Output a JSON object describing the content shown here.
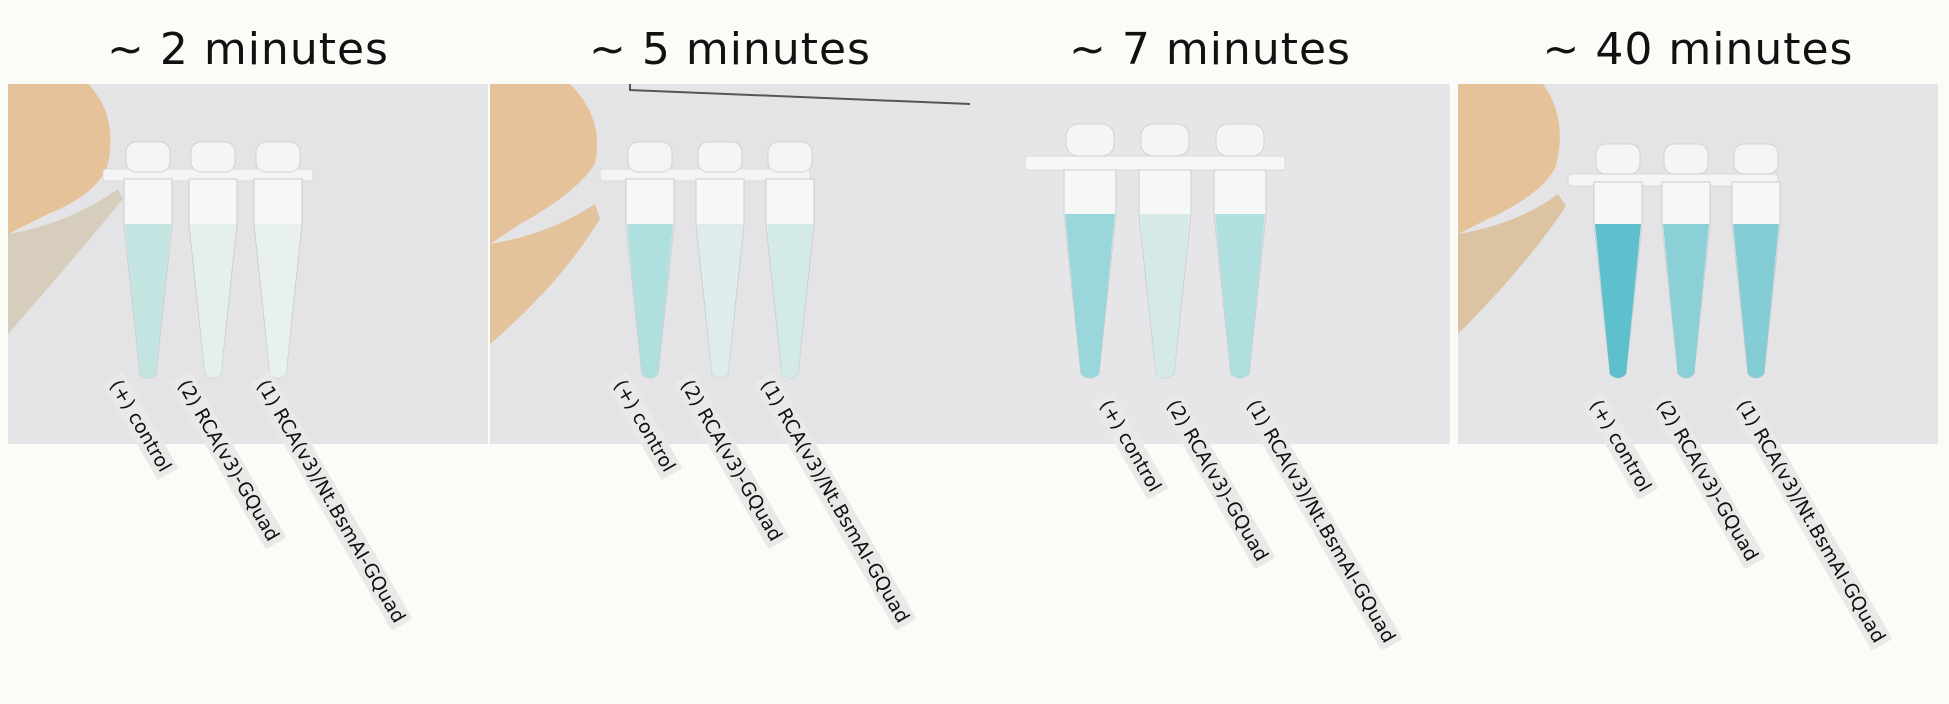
{
  "panels": [
    {
      "title": "~ 2 minutes",
      "labels": [
        "(+) control",
        "(2) RCA(v3)-GQuad",
        "(1) RCA(v3)/Nt.BsmAI-GQuad"
      ],
      "tube_colors": [
        "#bfe1df",
        "#e3eeec",
        "#e7efed"
      ]
    },
    {
      "title": "~ 5 minutes",
      "labels": [
        "(+) control",
        "(2) RCA(v3)-GQuad",
        "(1) RCA(v3)/Nt.BsmAI-GQuad"
      ],
      "tube_colors": [
        "#a9dcdd",
        "#dcebea",
        "#cfe8e6"
      ]
    },
    {
      "title": "~ 7 minutes",
      "labels": [
        "(+) control",
        "(2) RCA(v3)-GQuad",
        "(1) RCA(v3)/Nt.BsmAI-GQuad"
      ],
      "tube_colors": [
        "#8fd3d6",
        "#d2e8e6",
        "#a9dcdc"
      ]
    },
    {
      "title": "~ 40 minutes",
      "labels": [
        "(+) control",
        "(2) RCA(v3)-GQuad",
        "(1) RCA(v3)/Nt.BsmAI-GQuad"
      ],
      "tube_colors": [
        "#4fb9c8",
        "#7fcbd1",
        "#79c8cf"
      ]
    }
  ],
  "colors": {
    "background": "#fbfbf7",
    "photo_bg": "#e4e4e6",
    "finger": "#e6c29a"
  }
}
